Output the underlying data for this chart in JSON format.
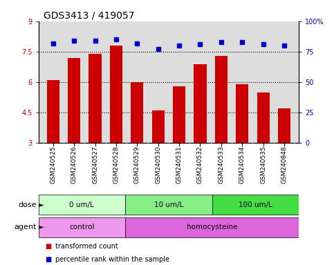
{
  "title": "GDS3413 / 419057",
  "samples": [
    "GSM240525",
    "GSM240526",
    "GSM240527",
    "GSM240528",
    "GSM240529",
    "GSM240530",
    "GSM240531",
    "GSM240532",
    "GSM240533",
    "GSM240534",
    "GSM240535",
    "GSM240848"
  ],
  "transformed_count": [
    6.1,
    7.2,
    7.4,
    7.8,
    6.0,
    4.6,
    5.8,
    6.9,
    7.3,
    5.9,
    5.5,
    4.7
  ],
  "percentile_rank": [
    82,
    84,
    84,
    85,
    82,
    77,
    80,
    81,
    83,
    83,
    81,
    80
  ],
  "bar_color": "#cc0000",
  "dot_color": "#0000cc",
  "ylim_left": [
    3,
    9
  ],
  "ylim_right": [
    0,
    100
  ],
  "yticks_left": [
    3,
    4.5,
    6,
    7.5,
    9
  ],
  "yticks_right": [
    0,
    25,
    50,
    75,
    100
  ],
  "grid_values": [
    4.5,
    6.0,
    7.5
  ],
  "dose_groups": [
    {
      "label": "0 um/L",
      "start": 0,
      "end": 4,
      "color": "#ccffcc"
    },
    {
      "label": "10 um/L",
      "start": 4,
      "end": 8,
      "color": "#88ee88"
    },
    {
      "label": "100 um/L",
      "start": 8,
      "end": 12,
      "color": "#44dd44"
    }
  ],
  "agent_groups": [
    {
      "label": "control",
      "start": 0,
      "end": 4,
      "color": "#ee99ee"
    },
    {
      "label": "homocysteine",
      "start": 4,
      "end": 12,
      "color": "#dd66dd"
    }
  ],
  "dose_label": "dose",
  "agent_label": "agent",
  "legend_items": [
    {
      "label": "transformed count",
      "color": "#cc0000"
    },
    {
      "label": "percentile rank within the sample",
      "color": "#0000cc"
    }
  ],
  "background_color": "#ffffff",
  "plot_bg_color": "#dddddd",
  "xtick_bg_color": "#cccccc",
  "title_fontsize": 10,
  "tick_fontsize": 7,
  "bar_width": 0.6
}
